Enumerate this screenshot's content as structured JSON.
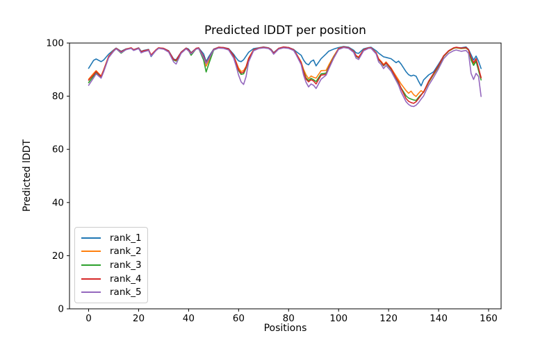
{
  "chart_data": {
    "type": "line",
    "title": "Predicted lDDT per position",
    "xlabel": "Positions",
    "ylabel": "Predicted lDDT",
    "xlim": [
      -7.65,
      165.0
    ],
    "ylim": [
      0,
      100
    ],
    "xticks": [
      0,
      20,
      40,
      60,
      80,
      100,
      120,
      140,
      160
    ],
    "yticks": [
      0,
      20,
      40,
      60,
      80,
      100
    ],
    "grid": false,
    "legend_position": "lower left",
    "x": [
      0,
      2,
      3,
      5,
      6,
      8,
      10,
      11,
      13,
      15,
      17,
      18,
      20,
      21,
      22,
      24,
      25,
      27,
      28,
      30,
      32,
      34,
      35,
      37,
      39,
      40,
      41,
      43,
      44,
      46,
      47,
      48,
      50,
      52,
      54,
      56,
      58,
      59,
      60,
      61,
      62,
      63,
      64,
      66,
      68,
      70,
      72,
      73,
      74,
      76,
      78,
      80,
      82,
      83,
      85,
      86,
      87,
      88,
      89,
      90,
      91,
      93,
      95,
      96,
      98,
      100,
      102,
      104,
      106,
      107,
      108,
      110,
      112,
      113,
      115,
      116,
      117,
      118,
      119,
      121,
      123,
      124,
      125,
      127,
      128,
      129,
      130,
      131,
      132,
      133,
      134,
      136,
      138,
      140,
      142,
      144,
      146,
      147,
      149,
      151,
      152,
      153,
      154,
      155,
      156,
      157
    ],
    "series": [
      {
        "name": "rank_1",
        "color": "#1f77b4",
        "values": [
          90.5,
          93.5,
          94.0,
          93.0,
          93.6,
          95.8,
          97.4,
          98.1,
          96.9,
          97.8,
          98.1,
          97.5,
          98.2,
          96.9,
          97.2,
          97.6,
          94.9,
          97.3,
          98.1,
          98.0,
          97.1,
          94.0,
          93.7,
          96.6,
          98.1,
          97.7,
          96.4,
          98.0,
          98.2,
          95.9,
          93.0,
          94.8,
          97.7,
          98.4,
          98.3,
          97.9,
          95.8,
          94.4,
          93.3,
          93.0,
          93.7,
          95.1,
          96.5,
          97.9,
          98.2,
          98.5,
          98.2,
          97.6,
          96.4,
          98.0,
          98.5,
          98.3,
          97.6,
          96.8,
          95.4,
          93.6,
          92.3,
          91.8,
          93.1,
          93.6,
          91.4,
          94.1,
          95.9,
          96.9,
          97.7,
          98.3,
          98.7,
          98.4,
          97.3,
          96.3,
          96.1,
          97.8,
          98.3,
          98.4,
          97.1,
          96.2,
          95.5,
          94.8,
          94.6,
          94.1,
          92.6,
          93.2,
          92.1,
          89.2,
          88.1,
          87.6,
          87.9,
          87.5,
          85.6,
          83.9,
          86.1,
          88.0,
          89.2,
          92.1,
          95.1,
          97.0,
          98.1,
          98.3,
          98.2,
          98.5,
          97.6,
          95.6,
          93.6,
          95.1,
          93.1,
          90.4
        ]
      },
      {
        "name": "rank_2",
        "color": "#ff7f0e",
        "values": [
          86.4,
          88.6,
          89.6,
          87.6,
          89.9,
          95.0,
          97.2,
          98.0,
          96.6,
          97.7,
          98.2,
          97.4,
          98.1,
          96.6,
          97.0,
          97.4,
          95.4,
          97.4,
          98.2,
          97.9,
          96.9,
          93.7,
          93.4,
          96.4,
          98.0,
          97.3,
          96.1,
          97.9,
          98.1,
          94.6,
          91.3,
          93.2,
          97.5,
          98.3,
          98.2,
          97.7,
          95.2,
          92.9,
          90.6,
          89.3,
          89.6,
          91.2,
          94.3,
          97.5,
          98.1,
          98.4,
          98.1,
          97.4,
          96.1,
          97.9,
          98.4,
          98.2,
          97.4,
          96.1,
          92.9,
          90.1,
          88.0,
          86.6,
          87.6,
          87.1,
          86.8,
          89.6,
          89.7,
          91.6,
          95.0,
          98.0,
          98.5,
          98.2,
          96.9,
          95.3,
          94.7,
          97.5,
          98.2,
          98.2,
          96.4,
          94.1,
          93.1,
          91.9,
          92.9,
          90.6,
          87.6,
          86.1,
          84.6,
          82.1,
          81.1,
          81.9,
          80.6,
          79.9,
          81.1,
          82.1,
          81.4,
          85.1,
          88.1,
          91.1,
          94.9,
          96.9,
          98.0,
          98.2,
          97.9,
          98.1,
          97.3,
          94.1,
          92.1,
          93.6,
          90.1,
          87.1
        ]
      },
      {
        "name": "rank_3",
        "color": "#2ca02c",
        "values": [
          85.1,
          87.6,
          88.9,
          87.1,
          89.4,
          94.7,
          97.0,
          97.9,
          96.2,
          97.6,
          98.1,
          97.3,
          98.0,
          96.5,
          96.9,
          97.3,
          95.2,
          97.3,
          98.1,
          97.8,
          96.8,
          93.6,
          93.2,
          96.3,
          97.9,
          97.1,
          95.4,
          97.8,
          98.0,
          93.6,
          89.1,
          92.0,
          97.3,
          98.2,
          98.1,
          97.6,
          95.0,
          92.4,
          89.6,
          88.2,
          88.4,
          90.6,
          93.9,
          97.3,
          98.0,
          98.3,
          98.0,
          97.3,
          96.0,
          97.8,
          98.3,
          98.1,
          97.3,
          95.9,
          92.4,
          89.4,
          86.9,
          85.9,
          86.7,
          86.2,
          85.5,
          88.4,
          88.7,
          90.8,
          94.6,
          97.8,
          98.4,
          98.1,
          96.7,
          95.0,
          94.4,
          97.3,
          98.1,
          98.1,
          96.2,
          93.7,
          92.7,
          91.4,
          92.4,
          90.1,
          86.7,
          85.0,
          83.1,
          80.1,
          79.3,
          78.9,
          78.6,
          78.4,
          79.6,
          80.6,
          81.6,
          85.3,
          88.3,
          91.3,
          95.0,
          97.0,
          98.1,
          98.3,
          98.0,
          98.2,
          97.4,
          93.6,
          91.6,
          93.1,
          89.6,
          86.1
        ]
      },
      {
        "name": "rank_4",
        "color": "#d62728",
        "values": [
          86.0,
          88.1,
          89.3,
          87.4,
          89.7,
          94.9,
          97.1,
          98.0,
          96.7,
          97.7,
          98.2,
          97.5,
          98.1,
          96.7,
          97.1,
          97.5,
          95.5,
          97.5,
          98.2,
          98.0,
          97.0,
          93.8,
          93.5,
          96.5,
          98.1,
          97.4,
          96.2,
          98.0,
          98.2,
          94.9,
          92.6,
          94.1,
          97.6,
          98.4,
          98.3,
          97.8,
          95.3,
          92.7,
          89.9,
          88.7,
          89.0,
          91.0,
          94.1,
          97.4,
          98.1,
          98.4,
          98.1,
          97.5,
          96.2,
          98.0,
          98.5,
          98.3,
          97.5,
          96.0,
          92.6,
          89.1,
          86.4,
          85.4,
          86.2,
          85.7,
          84.6,
          87.9,
          88.2,
          90.6,
          94.4,
          97.9,
          98.5,
          98.2,
          96.8,
          95.2,
          94.6,
          97.4,
          98.2,
          98.2,
          96.3,
          93.9,
          92.9,
          91.6,
          92.6,
          90.4,
          86.9,
          85.4,
          82.9,
          79.1,
          78.1,
          77.6,
          77.3,
          77.9,
          79.1,
          80.4,
          81.6,
          85.6,
          88.6,
          91.6,
          95.2,
          97.1,
          98.2,
          98.4,
          98.1,
          98.3,
          97.5,
          94.6,
          92.6,
          94.1,
          90.6,
          86.9
        ]
      },
      {
        "name": "rank_5",
        "color": "#9467bd",
        "values": [
          84.1,
          86.9,
          88.4,
          86.8,
          89.1,
          94.5,
          96.9,
          97.8,
          96.4,
          97.5,
          98.0,
          97.2,
          97.9,
          96.3,
          96.7,
          97.2,
          95.1,
          97.2,
          98.0,
          97.7,
          96.6,
          92.9,
          92.1,
          96.1,
          97.8,
          97.0,
          95.9,
          97.7,
          97.9,
          94.4,
          92.3,
          93.9,
          97.4,
          98.1,
          98.0,
          97.4,
          94.4,
          91.4,
          87.9,
          85.4,
          84.4,
          87.4,
          92.9,
          97.1,
          97.9,
          98.2,
          97.9,
          97.2,
          95.8,
          97.7,
          98.2,
          98.0,
          97.2,
          95.6,
          91.9,
          87.9,
          85.2,
          83.5,
          84.6,
          84.1,
          82.9,
          86.4,
          87.9,
          90.1,
          94.2,
          97.6,
          98.3,
          98.0,
          96.5,
          94.3,
          93.8,
          97.1,
          98.0,
          98.0,
          95.9,
          92.9,
          91.9,
          90.4,
          91.6,
          89.4,
          85.9,
          84.1,
          81.6,
          77.9,
          76.9,
          76.3,
          76.1,
          76.6,
          77.6,
          78.9,
          80.1,
          84.1,
          87.1,
          90.4,
          94.1,
          96.1,
          97.1,
          97.4,
          96.9,
          97.2,
          96.1,
          88.6,
          86.3,
          88.6,
          87.4,
          79.9
        ]
      }
    ]
  }
}
